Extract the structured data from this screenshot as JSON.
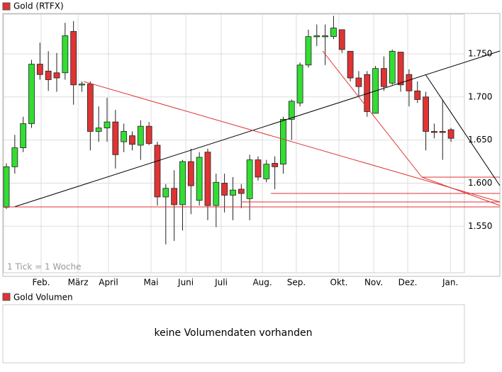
{
  "chart_data": {
    "type": "candlestick",
    "annotation": "1 Tick = 1 Woche",
    "x": [
      0,
      1,
      2,
      3,
      4,
      5,
      6,
      7,
      8,
      9,
      10,
      11,
      12,
      13,
      14,
      15,
      16,
      17,
      18,
      19,
      20,
      21,
      22,
      23,
      24,
      25,
      26,
      27,
      28,
      29,
      30,
      31,
      32,
      33,
      34,
      35,
      36,
      37,
      38,
      39,
      40,
      41,
      42,
      43,
      44,
      45,
      46,
      47,
      48,
      49,
      50,
      51,
      52,
      53
    ],
    "series": [
      {
        "name": "Gold (RTFX)",
        "color": "#e03333",
        "up_color": "#33dd33",
        "down_color": "#e03333",
        "open": [
          1572,
          1619,
          1641,
          1669,
          1738,
          1730,
          1728,
          1728,
          1776,
          1714,
          1715,
          1660,
          1664,
          1671,
          1648,
          1655,
          1644,
          1666,
          1644,
          1584,
          1594,
          1575,
          1625,
          1580,
          1636,
          1574,
          1600,
          1586,
          1593,
          1582,
          1627,
          1605,
          1623,
          1622,
          1674,
          1693,
          1737,
          1771,
          1771,
          1770,
          1778,
          1753,
          1722,
          1726,
          1681,
          1733,
          1716,
          1752,
          1726,
          1707,
          1700,
          1660,
          1660,
          1662
        ],
        "high": [
          1623,
          1656,
          1677,
          1743,
          1763,
          1753,
          1751,
          1786,
          1788,
          1718,
          1718,
          1689,
          1699,
          1685,
          1669,
          1660,
          1673,
          1671,
          1648,
          1599,
          1615,
          1627,
          1640,
          1636,
          1640,
          1611,
          1611,
          1607,
          1599,
          1633,
          1631,
          1627,
          1631,
          1677,
          1697,
          1740,
          1778,
          1784,
          1784,
          1794,
          1778,
          1753,
          1730,
          1730,
          1736,
          1747,
          1755,
          1752,
          1732,
          1718,
          1706,
          1669,
          1697,
          1664
        ],
        "low": [
          1570,
          1611,
          1636,
          1664,
          1720,
          1707,
          1706,
          1720,
          1691,
          1706,
          1638,
          1648,
          1648,
          1617,
          1636,
          1638,
          1627,
          1644,
          1574,
          1529,
          1533,
          1545,
          1564,
          1574,
          1557,
          1549,
          1566,
          1557,
          1571,
          1557,
          1603,
          1601,
          1593,
          1611,
          1650,
          1689,
          1734,
          1759,
          1737,
          1767,
          1751,
          1718,
          1701,
          1677,
          1681,
          1707,
          1714,
          1706,
          1689,
          1693,
          1638,
          1652,
          1627,
          1648
        ],
        "close": [
          1619,
          1641,
          1669,
          1738,
          1726,
          1720,
          1722,
          1771,
          1714,
          1715,
          1660,
          1664,
          1671,
          1633,
          1660,
          1645,
          1666,
          1646,
          1584,
          1594,
          1575,
          1625,
          1597,
          1630,
          1574,
          1601,
          1586,
          1592,
          1588,
          1627,
          1607,
          1622,
          1619,
          1674,
          1695,
          1737,
          1770,
          1771,
          1771,
          1780,
          1755,
          1722,
          1712,
          1683,
          1733,
          1712,
          1753,
          1714,
          1707,
          1697,
          1660,
          1659,
          1659,
          1652
        ]
      }
    ],
    "xlim": [
      -0.34,
      54.6
    ],
    "xticks": [
      {
        "value": 4.14,
        "label": "Feb."
      },
      {
        "value": 8.54,
        "label": "März"
      },
      {
        "value": 12.17,
        "label": "April"
      },
      {
        "value": 17.24,
        "label": "Mai"
      },
      {
        "value": 21.39,
        "label": "Juni"
      },
      {
        "value": 25.61,
        "label": "Juli"
      },
      {
        "value": 30.52,
        "label": "Aug."
      },
      {
        "value": 34.57,
        "label": "Sep."
      },
      {
        "value": 39.64,
        "label": "Okt."
      },
      {
        "value": 43.79,
        "label": "Nov."
      },
      {
        "value": 47.84,
        "label": "Dez."
      },
      {
        "value": 52.92,
        "label": "Jan."
      }
    ],
    "ylim": [
      1496,
      1796
    ],
    "yticks": [
      {
        "value": 1550,
        "label": "1.550"
      },
      {
        "value": 1600,
        "label": "1.600"
      },
      {
        "value": 1650,
        "label": "1.650"
      },
      {
        "value": 1700,
        "label": "1.700"
      },
      {
        "value": 1750,
        "label": "1.750"
      }
    ],
    "grid": true
  },
  "volume_panel": {
    "legend": "Gold Volumen",
    "legend_color": "#e03333",
    "message": "keine Volumendaten vorhanden"
  }
}
